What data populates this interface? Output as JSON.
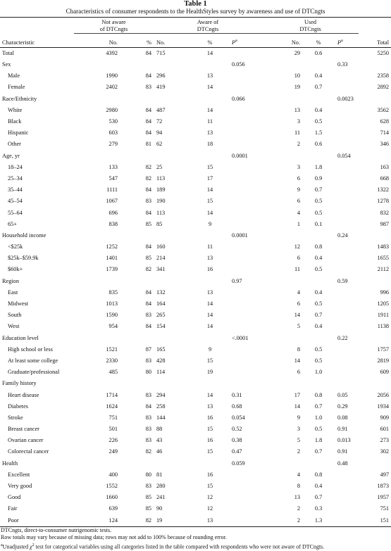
{
  "table": {
    "label": "Table 1",
    "caption": "Characteristics of consumer respondents to the HealthStyles survey by awareness and use of DTCngts",
    "group_headers": {
      "not_aware": [
        "Not aware",
        "of DTCngts"
      ],
      "aware": [
        "Aware of",
        "DTCngts"
      ],
      "used": [
        "Used",
        "DTCngts"
      ]
    },
    "column_headers": {
      "characteristic": "Characteristic",
      "no": "No.",
      "pct": "%",
      "p": "P",
      "p_sup": "a",
      "total": "Total"
    },
    "rows": [
      {
        "label": "Total",
        "indent": false,
        "na_no": "4392",
        "na_pct": "84",
        "aw_no": "715",
        "aw_pct": "14",
        "aw_p": "",
        "us_no": "29",
        "us_pct": "0.6",
        "us_p": "",
        "total": "5250"
      },
      {
        "label": "Sex",
        "indent": false,
        "na_no": "",
        "na_pct": "",
        "aw_no": "",
        "aw_pct": "",
        "aw_p": "0.056",
        "us_no": "",
        "us_pct": "",
        "us_p": "0.33",
        "total": ""
      },
      {
        "label": "Male",
        "indent": true,
        "na_no": "1990",
        "na_pct": "84",
        "aw_no": "296",
        "aw_pct": "13",
        "aw_p": "",
        "us_no": "10",
        "us_pct": "0.4",
        "us_p": "",
        "total": "2358"
      },
      {
        "label": "Female",
        "indent": true,
        "na_no": "2402",
        "na_pct": "83",
        "aw_no": "419",
        "aw_pct": "14",
        "aw_p": "",
        "us_no": "19",
        "us_pct": "0.7",
        "us_p": "",
        "total": "2892"
      },
      {
        "label": "Race/Ethnicity",
        "indent": false,
        "na_no": "",
        "na_pct": "",
        "aw_no": "",
        "aw_pct": "",
        "aw_p": "0.066",
        "us_no": "",
        "us_pct": "",
        "us_p": "0.0023",
        "total": ""
      },
      {
        "label": "White",
        "indent": true,
        "na_no": "2980",
        "na_pct": "84",
        "aw_no": "487",
        "aw_pct": "14",
        "aw_p": "",
        "us_no": "13",
        "us_pct": "0.4",
        "us_p": "",
        "total": "3562"
      },
      {
        "label": "Black",
        "indent": true,
        "na_no": "530",
        "na_pct": "84",
        "aw_no": "72",
        "aw_pct": "11",
        "aw_p": "",
        "us_no": "3",
        "us_pct": "0.5",
        "us_p": "",
        "total": "628"
      },
      {
        "label": "Hispanic",
        "indent": true,
        "na_no": "603",
        "na_pct": "84",
        "aw_no": "94",
        "aw_pct": "13",
        "aw_p": "",
        "us_no": "11",
        "us_pct": "1.5",
        "us_p": "",
        "total": "714"
      },
      {
        "label": "Other",
        "indent": true,
        "na_no": "279",
        "na_pct": "81",
        "aw_no": "62",
        "aw_pct": "18",
        "aw_p": "",
        "us_no": "2",
        "us_pct": "0.6",
        "us_p": "",
        "total": "346"
      },
      {
        "label": "Age, yr",
        "indent": false,
        "na_no": "",
        "na_pct": "",
        "aw_no": "",
        "aw_pct": "",
        "aw_p": "0.0001",
        "us_no": "",
        "us_pct": "",
        "us_p": "0.054",
        "total": ""
      },
      {
        "label": "18–24",
        "indent": true,
        "na_no": "133",
        "na_pct": "82",
        "aw_no": "25",
        "aw_pct": "15",
        "aw_p": "",
        "us_no": "3",
        "us_pct": "1.8",
        "us_p": "",
        "total": "163"
      },
      {
        "label": "25–34",
        "indent": true,
        "na_no": "547",
        "na_pct": "82",
        "aw_no": "113",
        "aw_pct": "17",
        "aw_p": "",
        "us_no": "6",
        "us_pct": "0.9",
        "us_p": "",
        "total": "668"
      },
      {
        "label": "35–44",
        "indent": true,
        "na_no": "1111",
        "na_pct": "84",
        "aw_no": "189",
        "aw_pct": "14",
        "aw_p": "",
        "us_no": "9",
        "us_pct": "0.7",
        "us_p": "",
        "total": "1322"
      },
      {
        "label": "45–54",
        "indent": true,
        "na_no": "1067",
        "na_pct": "83",
        "aw_no": "190",
        "aw_pct": "15",
        "aw_p": "",
        "us_no": "6",
        "us_pct": "0.5",
        "us_p": "",
        "total": "1278"
      },
      {
        "label": "55–64",
        "indent": true,
        "na_no": "696",
        "na_pct": "84",
        "aw_no": "113",
        "aw_pct": "14",
        "aw_p": "",
        "us_no": "4",
        "us_pct": "0.5",
        "us_p": "",
        "total": "832"
      },
      {
        "label": "65+",
        "indent": true,
        "na_no": "838",
        "na_pct": "85",
        "aw_no": "85",
        "aw_pct": "9",
        "aw_p": "",
        "us_no": "1",
        "us_pct": "0.1",
        "us_p": "",
        "total": "987"
      },
      {
        "label": "Household income",
        "indent": false,
        "na_no": "",
        "na_pct": "",
        "aw_no": "",
        "aw_pct": "",
        "aw_p": "0.0001",
        "us_no": "",
        "us_pct": "",
        "us_p": "0.24",
        "total": ""
      },
      {
        "label": "<$25k",
        "indent": true,
        "na_no": "1252",
        "na_pct": "84",
        "aw_no": "160",
        "aw_pct": "11",
        "aw_p": "",
        "us_no": "12",
        "us_pct": "0.8",
        "us_p": "",
        "total": "1483"
      },
      {
        "label": "$25k–$59.9k",
        "indent": true,
        "na_no": "1401",
        "na_pct": "85",
        "aw_no": "214",
        "aw_pct": "13",
        "aw_p": "",
        "us_no": "6",
        "us_pct": "0.4",
        "us_p": "",
        "total": "1655"
      },
      {
        "label": "$60k+",
        "indent": true,
        "na_no": "1739",
        "na_pct": "82",
        "aw_no": "341",
        "aw_pct": "16",
        "aw_p": "",
        "us_no": "11",
        "us_pct": "0.5",
        "us_p": "",
        "total": "2112"
      },
      {
        "label": "Region",
        "indent": false,
        "na_no": "",
        "na_pct": "",
        "aw_no": "",
        "aw_pct": "",
        "aw_p": "0.97",
        "us_no": "",
        "us_pct": "",
        "us_p": "0.59",
        "total": ""
      },
      {
        "label": "East",
        "indent": true,
        "na_no": "835",
        "na_pct": "84",
        "aw_no": "132",
        "aw_pct": "13",
        "aw_p": "",
        "us_no": "4",
        "us_pct": "0.4",
        "us_p": "",
        "total": "996"
      },
      {
        "label": "Midwest",
        "indent": true,
        "na_no": "1013",
        "na_pct": "84",
        "aw_no": "164",
        "aw_pct": "14",
        "aw_p": "",
        "us_no": "6",
        "us_pct": "0.5",
        "us_p": "",
        "total": "1205"
      },
      {
        "label": "South",
        "indent": true,
        "na_no": "1590",
        "na_pct": "83",
        "aw_no": "265",
        "aw_pct": "14",
        "aw_p": "",
        "us_no": "14",
        "us_pct": "0.7",
        "us_p": "",
        "total": "1911"
      },
      {
        "label": "West",
        "indent": true,
        "na_no": "954",
        "na_pct": "84",
        "aw_no": "154",
        "aw_pct": "14",
        "aw_p": "",
        "us_no": "5",
        "us_pct": "0.4",
        "us_p": "",
        "total": "1138"
      },
      {
        "label": "Education level",
        "indent": false,
        "na_no": "",
        "na_pct": "",
        "aw_no": "",
        "aw_pct": "",
        "aw_p": "<.0001",
        "us_no": "",
        "us_pct": "",
        "us_p": "0.22",
        "total": ""
      },
      {
        "label": "High school or less",
        "indent": true,
        "na_no": "1521",
        "na_pct": "87",
        "aw_no": "165",
        "aw_pct": "9",
        "aw_p": "",
        "us_no": "8",
        "us_pct": "0.5",
        "us_p": "",
        "total": "1757"
      },
      {
        "label": "At least some college",
        "indent": true,
        "na_no": "2330",
        "na_pct": "83",
        "aw_no": "428",
        "aw_pct": "15",
        "aw_p": "",
        "us_no": "14",
        "us_pct": "0.5",
        "us_p": "",
        "total": "2819"
      },
      {
        "label": "Graduate/professional",
        "indent": true,
        "na_no": "485",
        "na_pct": "80",
        "aw_no": "114",
        "aw_pct": "19",
        "aw_p": "",
        "us_no": "6",
        "us_pct": "1.0",
        "us_p": "",
        "total": "609"
      },
      {
        "label": "Family history",
        "indent": false,
        "na_no": "",
        "na_pct": "",
        "aw_no": "",
        "aw_pct": "",
        "aw_p": "",
        "us_no": "",
        "us_pct": "",
        "us_p": "",
        "total": ""
      },
      {
        "label": "Heart disease",
        "indent": true,
        "na_no": "1714",
        "na_pct": "83",
        "aw_no": "294",
        "aw_pct": "14",
        "aw_p": "0.31",
        "us_no": "17",
        "us_pct": "0.8",
        "us_p": "0.05",
        "total": "2056"
      },
      {
        "label": "Diabetes",
        "indent": true,
        "na_no": "1624",
        "na_pct": "84",
        "aw_no": "258",
        "aw_pct": "13",
        "aw_p": "0.68",
        "us_no": "14",
        "us_pct": "0.7",
        "us_p": "0.29",
        "total": "1934"
      },
      {
        "label": "Stroke",
        "indent": true,
        "na_no": "751",
        "na_pct": "83",
        "aw_no": "144",
        "aw_pct": "16",
        "aw_p": "0.054",
        "us_no": "9",
        "us_pct": "1.0",
        "us_p": "0.08",
        "total": "909"
      },
      {
        "label": "Breast cancer",
        "indent": true,
        "na_no": "501",
        "na_pct": "83",
        "aw_no": "88",
        "aw_pct": "15",
        "aw_p": "0.52",
        "us_no": "3",
        "us_pct": "0.5",
        "us_p": "0.91",
        "total": "601"
      },
      {
        "label": "Ovarian cancer",
        "indent": true,
        "na_no": "226",
        "na_pct": "83",
        "aw_no": "43",
        "aw_pct": "16",
        "aw_p": "0.38",
        "us_no": "5",
        "us_pct": "1.8",
        "us_p": "0.013",
        "total": "273"
      },
      {
        "label": "Colorectal cancer",
        "indent": true,
        "na_no": "249",
        "na_pct": "82",
        "aw_no": "46",
        "aw_pct": "15",
        "aw_p": "0.47",
        "us_no": "2",
        "us_pct": "0.7",
        "us_p": "0.91",
        "total": "302"
      },
      {
        "label": "Health",
        "indent": false,
        "na_no": "",
        "na_pct": "",
        "aw_no": "",
        "aw_pct": "",
        "aw_p": "0.059",
        "us_no": "",
        "us_pct": "",
        "us_p": "0.48",
        "total": ""
      },
      {
        "label": "Excellent",
        "indent": true,
        "na_no": "400",
        "na_pct": "80",
        "aw_no": "81",
        "aw_pct": "16",
        "aw_p": "",
        "us_no": "4",
        "us_pct": "0.8",
        "us_p": "",
        "total": "497"
      },
      {
        "label": "Very good",
        "indent": true,
        "na_no": "1552",
        "na_pct": "83",
        "aw_no": "280",
        "aw_pct": "15",
        "aw_p": "",
        "us_no": "8",
        "us_pct": "0.4",
        "us_p": "",
        "total": "1873"
      },
      {
        "label": "Good",
        "indent": true,
        "na_no": "1660",
        "na_pct": "85",
        "aw_no": "241",
        "aw_pct": "12",
        "aw_p": "",
        "us_no": "13",
        "us_pct": "0.7",
        "us_p": "",
        "total": "1957"
      },
      {
        "label": "Fair",
        "indent": true,
        "na_no": "639",
        "na_pct": "85",
        "aw_no": "90",
        "aw_pct": "12",
        "aw_p": "",
        "us_no": "2",
        "us_pct": "0.3",
        "us_p": "",
        "total": "751"
      },
      {
        "label": "Poor",
        "indent": true,
        "na_no": "124",
        "na_pct": "82",
        "aw_no": "19",
        "aw_pct": "13",
        "aw_p": "",
        "us_no": "2",
        "us_pct": "1.3",
        "us_p": "",
        "total": "151"
      }
    ],
    "footnotes": {
      "abbrev": "DTCngts, direct-to-consumer nutrigenomic tests.",
      "rounding": "Row totals may vary because of missing data; rows may not add to 100% because of rounding error.",
      "a_marker": "a",
      "a_prefix": "Unadjusted ",
      "a_chi": "χ",
      "a_chi_sup": "2",
      "a_text": " test for categorical variables using all categories listed in the table compared with respondents who were not aware of DTCngts."
    }
  }
}
